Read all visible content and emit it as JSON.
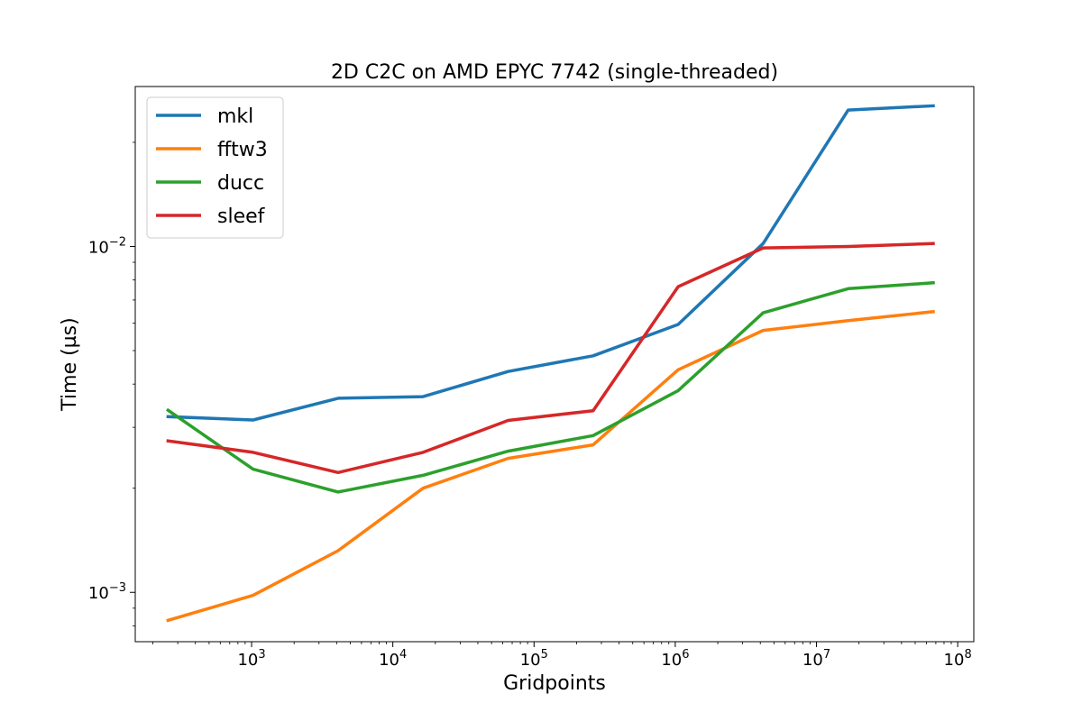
{
  "chart_data": {
    "type": "line",
    "title": "2D C2C on AMD EPYC 7742 (single-threaded)",
    "xlabel": "Gridpoints",
    "ylabel": "Time (µs)",
    "xscale": "log",
    "yscale": "log",
    "xlim": [
      150,
      130000000
    ],
    "ylim": [
      0.00072,
      0.029
    ],
    "grid": false,
    "legend_position": "top-left",
    "x_ticks": [
      {
        "base": "10",
        "exp": "3",
        "value": 1000
      },
      {
        "base": "10",
        "exp": "4",
        "value": 10000
      },
      {
        "base": "10",
        "exp": "5",
        "value": 100000
      },
      {
        "base": "10",
        "exp": "6",
        "value": 1000000
      },
      {
        "base": "10",
        "exp": "7",
        "value": 10000000
      },
      {
        "base": "10",
        "exp": "8",
        "value": 100000000
      }
    ],
    "y_ticks": [
      {
        "base": "10",
        "exp": "−3",
        "value": 0.001
      },
      {
        "base": "10",
        "exp": "−2",
        "value": 0.01
      }
    ],
    "x": [
      256,
      1024,
      4096,
      16384,
      65536,
      262144,
      1048576,
      4194304,
      16777216,
      67108864
    ],
    "series": [
      {
        "name": "mkl",
        "color": "#1f77b4",
        "values": [
          0.00322,
          0.00315,
          0.00364,
          0.00368,
          0.00435,
          0.00483,
          0.00595,
          0.0102,
          0.0248,
          0.0255
        ]
      },
      {
        "name": "fftw3",
        "color": "#ff7f0e",
        "values": [
          0.00083,
          0.00098,
          0.00132,
          0.002,
          0.00244,
          0.00267,
          0.0044,
          0.00572,
          0.0061,
          0.00648
        ]
      },
      {
        "name": "ducc",
        "color": "#2ca02c",
        "values": [
          0.00336,
          0.00227,
          0.00195,
          0.00218,
          0.00256,
          0.00284,
          0.00383,
          0.00643,
          0.00755,
          0.00785
        ]
      },
      {
        "name": "sleef",
        "color": "#d62728",
        "values": [
          0.00274,
          0.00254,
          0.00222,
          0.00254,
          0.00314,
          0.00335,
          0.00765,
          0.0099,
          0.01,
          0.0102
        ]
      }
    ]
  }
}
